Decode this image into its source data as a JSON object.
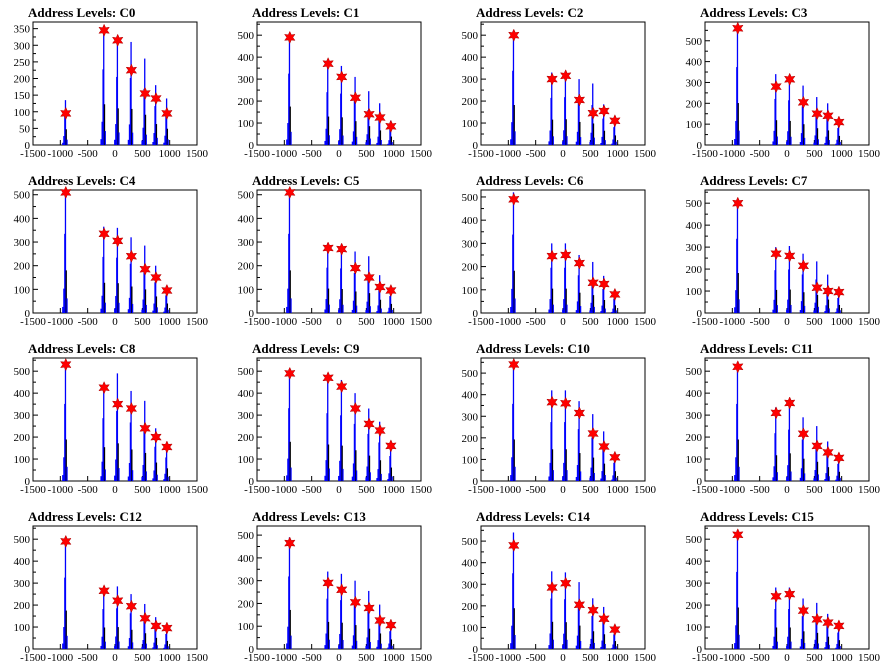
{
  "xticks": [
    "-1500",
    "-1000",
    "-500",
    "0",
    "500",
    "1000",
    "1500"
  ],
  "xlim": [
    -1500,
    1500
  ],
  "colors": {
    "histogram": "#0000ff",
    "marker": "#ff0000",
    "axes": "#000000"
  },
  "panels": [
    {
      "title": "Address Levels: C0",
      "chart_data": {
        "type": "bar",
        "ylim": [
          0,
          370
        ],
        "yticks": [
          "0",
          "50",
          "100",
          "150",
          "200",
          "250",
          "300",
          "350"
        ],
        "markers_x": [
          -900,
          -200,
          50,
          300,
          550,
          750,
          950
        ],
        "markers_y": [
          95,
          345,
          315,
          225,
          155,
          140,
          95
        ],
        "peaks": [
          135,
          350,
          315,
          310,
          260,
          180,
          140
        ]
      }
    },
    {
      "title": "Address Levels: C1",
      "chart_data": {
        "type": "bar",
        "ylim": [
          0,
          560
        ],
        "yticks": [
          "0",
          "100",
          "200",
          "300",
          "400",
          "500"
        ],
        "markers_x": [
          -900,
          -200,
          50,
          300,
          550,
          750,
          950
        ],
        "markers_y": [
          490,
          370,
          310,
          215,
          140,
          125,
          85
        ],
        "peaks": [
          500,
          370,
          360,
          310,
          245,
          190,
          110
        ]
      }
    },
    {
      "title": "Address Levels: C2",
      "chart_data": {
        "type": "bar",
        "ylim": [
          0,
          560
        ],
        "yticks": [
          "0",
          "100",
          "200",
          "300",
          "400",
          "500"
        ],
        "markers_x": [
          -900,
          -200,
          50,
          300,
          550,
          750,
          950
        ],
        "markers_y": [
          500,
          300,
          315,
          205,
          145,
          155,
          110
        ],
        "peaks": [
          520,
          330,
          335,
          300,
          280,
          185,
          125
        ]
      }
    },
    {
      "title": "Address Levels: C3",
      "chart_data": {
        "type": "bar",
        "ylim": [
          0,
          590
        ],
        "yticks": [
          "0",
          "100",
          "200",
          "300",
          "400",
          "500"
        ],
        "markers_x": [
          -900,
          -200,
          50,
          300,
          550,
          750,
          950
        ],
        "markers_y": [
          560,
          280,
          315,
          205,
          150,
          140,
          110
        ],
        "peaks": [
          575,
          340,
          330,
          285,
          230,
          200,
          125
        ]
      }
    },
    {
      "title": "Address Levels: C4",
      "chart_data": {
        "type": "bar",
        "ylim": [
          0,
          520
        ],
        "yticks": [
          "0",
          "100",
          "200",
          "300",
          "400",
          "500"
        ],
        "markers_x": [
          -900,
          -200,
          50,
          300,
          550,
          750,
          950
        ],
        "markers_y": [
          510,
          335,
          305,
          240,
          185,
          150,
          95
        ],
        "peaks": [
          515,
          365,
          360,
          320,
          285,
          200,
          115
        ]
      }
    },
    {
      "title": "Address Levels: C5",
      "chart_data": {
        "type": "bar",
        "ylim": [
          0,
          520
        ],
        "yticks": [
          "0",
          "100",
          "200",
          "300",
          "400",
          "500"
        ],
        "markers_x": [
          -900,
          -200,
          50,
          300,
          550,
          750,
          950
        ],
        "markers_y": [
          510,
          275,
          270,
          190,
          150,
          110,
          95
        ],
        "peaks": [
          515,
          295,
          290,
          260,
          240,
          160,
          110
        ]
      }
    },
    {
      "title": "Address Levels: C6",
      "chart_data": {
        "type": "bar",
        "ylim": [
          0,
          530
        ],
        "yticks": [
          "0",
          "100",
          "200",
          "300",
          "400",
          "500"
        ],
        "markers_x": [
          -900,
          -200,
          50,
          300,
          550,
          750,
          950
        ],
        "markers_y": [
          490,
          245,
          250,
          215,
          130,
          125,
          80
        ],
        "peaks": [
          520,
          300,
          300,
          250,
          220,
          160,
          95
        ]
      }
    },
    {
      "title": "Address Levels: C7",
      "chart_data": {
        "type": "bar",
        "ylim": [
          0,
          560
        ],
        "yticks": [
          "0",
          "100",
          "200",
          "300",
          "400",
          "500"
        ],
        "markers_x": [
          -900,
          -200,
          50,
          300,
          550,
          750,
          950
        ],
        "markers_y": [
          500,
          270,
          260,
          215,
          115,
          100,
          95
        ],
        "peaks": [
          520,
          300,
          305,
          270,
          235,
          175,
          105
        ]
      }
    },
    {
      "title": "Address Levels: C8",
      "chart_data": {
        "type": "bar",
        "ylim": [
          0,
          560
        ],
        "yticks": [
          "0",
          "100",
          "200",
          "300",
          "400",
          "500"
        ],
        "markers_x": [
          -900,
          -200,
          50,
          300,
          550,
          750,
          950
        ],
        "markers_y": [
          530,
          425,
          350,
          330,
          240,
          200,
          155
        ],
        "peaks": [
          540,
          440,
          490,
          410,
          365,
          240,
          165
        ]
      }
    },
    {
      "title": "Address Levels: C9",
      "chart_data": {
        "type": "bar",
        "ylim": [
          0,
          560
        ],
        "yticks": [
          "0",
          "100",
          "200",
          "300",
          "400",
          "500"
        ],
        "markers_x": [
          -900,
          -200,
          50,
          300,
          550,
          750,
          950
        ],
        "markers_y": [
          490,
          470,
          430,
          330,
          260,
          230,
          160
        ],
        "peaks": [
          510,
          475,
          460,
          400,
          330,
          270,
          175
        ]
      }
    },
    {
      "title": "Address Levels: C10",
      "chart_data": {
        "type": "bar",
        "ylim": [
          0,
          570
        ],
        "yticks": [
          "0",
          "100",
          "200",
          "300",
          "400",
          "500"
        ],
        "markers_x": [
          -900,
          -200,
          50,
          300,
          550,
          750,
          950
        ],
        "markers_y": [
          540,
          365,
          360,
          315,
          220,
          160,
          110
        ],
        "peaks": [
          550,
          420,
          420,
          370,
          310,
          230,
          130
        ]
      }
    },
    {
      "title": "Address Levels: C11",
      "chart_data": {
        "type": "bar",
        "ylim": [
          0,
          560
        ],
        "yticks": [
          "0",
          "100",
          "200",
          "300",
          "400",
          "500"
        ],
        "markers_x": [
          -900,
          -200,
          50,
          300,
          550,
          750,
          950
        ],
        "markers_y": [
          520,
          310,
          355,
          215,
          160,
          130,
          105
        ],
        "peaks": [
          540,
          335,
          360,
          290,
          250,
          180,
          120
        ]
      }
    },
    {
      "title": "Address Levels: C12",
      "chart_data": {
        "type": "bar",
        "ylim": [
          0,
          560
        ],
        "yticks": [
          "0",
          "100",
          "200",
          "300",
          "400",
          "500"
        ],
        "markers_x": [
          -900,
          -200,
          50,
          300,
          550,
          750,
          950
        ],
        "markers_y": [
          490,
          265,
          220,
          195,
          140,
          105,
          95
        ],
        "peaks": [
          500,
          280,
          285,
          250,
          205,
          145,
          105
        ]
      }
    },
    {
      "title": "Address Levels: C13",
      "chart_data": {
        "type": "bar",
        "ylim": [
          0,
          540
        ],
        "yticks": [
          "0",
          "100",
          "200",
          "300",
          "400",
          "500"
        ],
        "markers_x": [
          -900,
          -200,
          50,
          300,
          550,
          750,
          950
        ],
        "markers_y": [
          465,
          290,
          260,
          205,
          180,
          125,
          105
        ],
        "peaks": [
          490,
          340,
          330,
          300,
          255,
          195,
          120
        ]
      }
    },
    {
      "title": "Address Levels: C14",
      "chart_data": {
        "type": "bar",
        "ylim": [
          0,
          570
        ],
        "yticks": [
          "0",
          "100",
          "200",
          "300",
          "400",
          "500"
        ],
        "markers_x": [
          -900,
          -200,
          50,
          300,
          550,
          750,
          950
        ],
        "markers_y": [
          480,
          285,
          305,
          205,
          180,
          140,
          90
        ],
        "peaks": [
          540,
          360,
          355,
          310,
          235,
          195,
          105
        ]
      }
    },
    {
      "title": "Address Levels: C15",
      "chart_data": {
        "type": "bar",
        "ylim": [
          0,
          560
        ],
        "yticks": [
          "0",
          "100",
          "200",
          "300",
          "400",
          "500"
        ],
        "markers_x": [
          -900,
          -200,
          50,
          300,
          550,
          750,
          950
        ],
        "markers_y": [
          520,
          240,
          250,
          175,
          135,
          120,
          105
        ],
        "peaks": [
          540,
          280,
          280,
          230,
          210,
          160,
          115
        ]
      }
    }
  ]
}
